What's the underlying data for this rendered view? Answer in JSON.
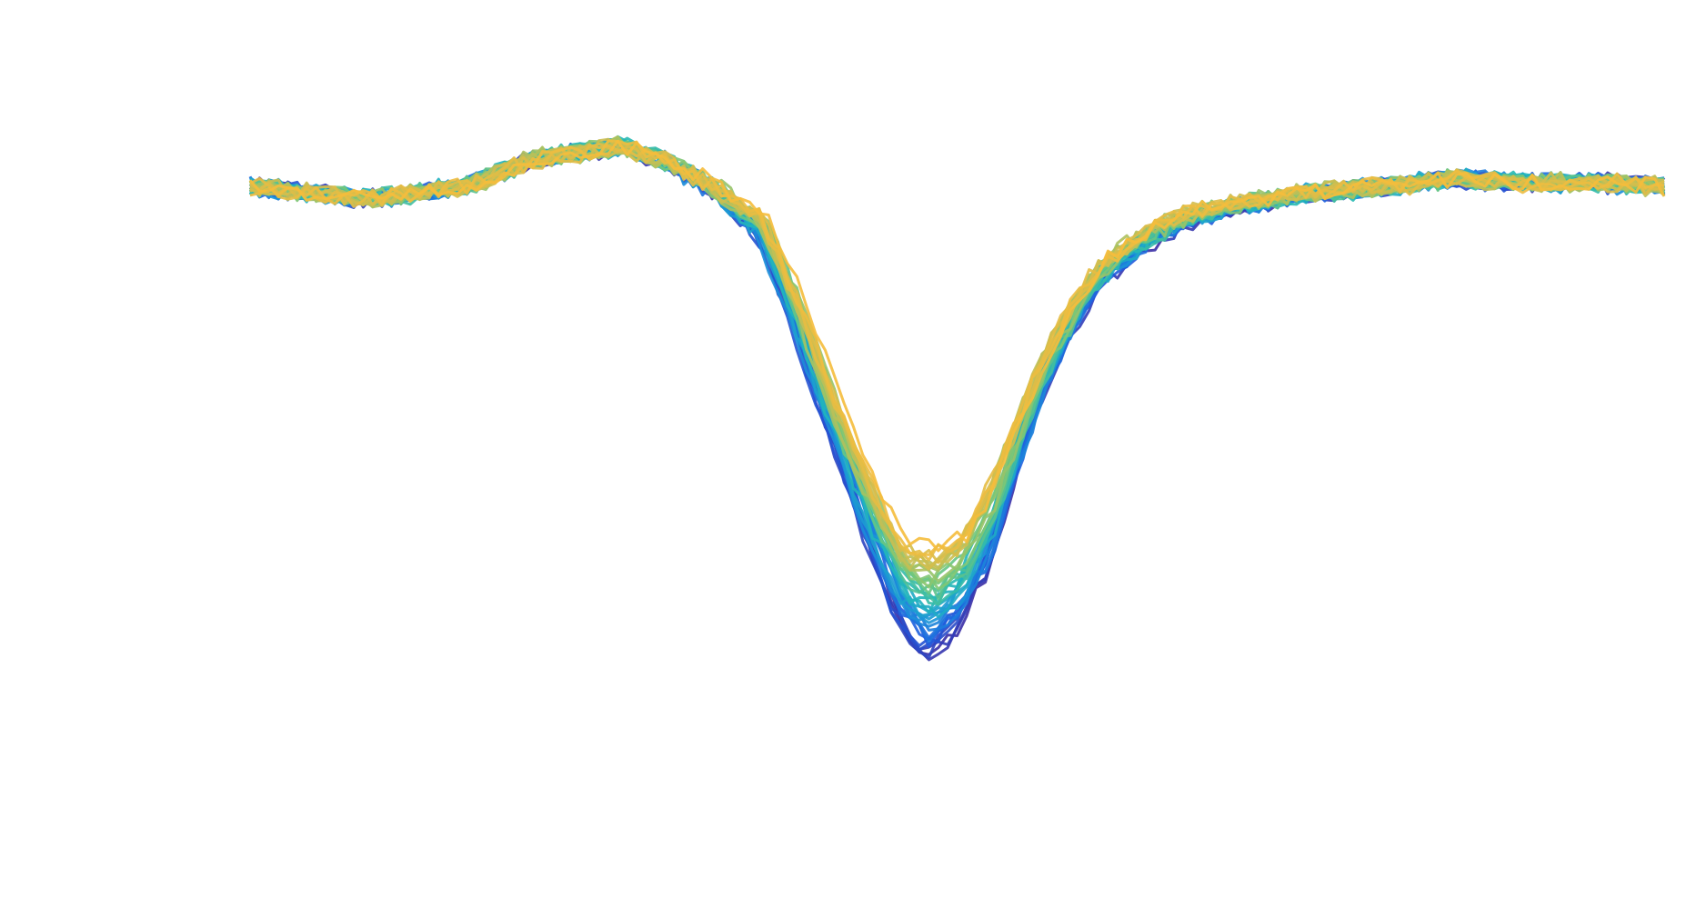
{
  "chart_data": {
    "type": "line",
    "title": "",
    "xlabel": "",
    "ylabel": "",
    "axes_visible": false,
    "grid": false,
    "legend": "none",
    "x_range": [
      0,
      100
    ],
    "y_range": [
      -1.35,
      0.35
    ],
    "n_series": 40,
    "colormap": [
      "#3a2fa6",
      "#1f5ee0",
      "#1b95d8",
      "#22b8b8",
      "#74c77a",
      "#c0bf56",
      "#f5bc3c"
    ],
    "baseline_shape": {
      "x": [
        0,
        8,
        15,
        20,
        26,
        30,
        33,
        36,
        38,
        41,
        44,
        46,
        48,
        50,
        52,
        54,
        56,
        58,
        60,
        63,
        66,
        70,
        75,
        80,
        85,
        90,
        95,
        100
      ],
      "y": [
        0.0,
        -0.03,
        0.0,
        0.07,
        0.1,
        0.05,
        -0.02,
        -0.12,
        -0.3,
        -0.62,
        -0.92,
        -1.1,
        -1.17,
        -1.1,
        -0.95,
        -0.72,
        -0.5,
        -0.35,
        -0.24,
        -0.15,
        -0.09,
        -0.05,
        -0.02,
        0.0,
        0.02,
        0.01,
        0.01,
        0.0
      ],
      "y_last_series": [
        0.0,
        -0.03,
        0.0,
        0.07,
        0.1,
        0.05,
        -0.01,
        -0.08,
        -0.24,
        -0.52,
        -0.76,
        -0.88,
        -0.9,
        -0.86,
        -0.74,
        -0.56,
        -0.4,
        -0.28,
        -0.18,
        -0.11,
        -0.06,
        -0.03,
        -0.01,
        0.0,
        0.02,
        0.01,
        0.01,
        0.0
      ]
    },
    "noise_amplitude": 0.022
  }
}
